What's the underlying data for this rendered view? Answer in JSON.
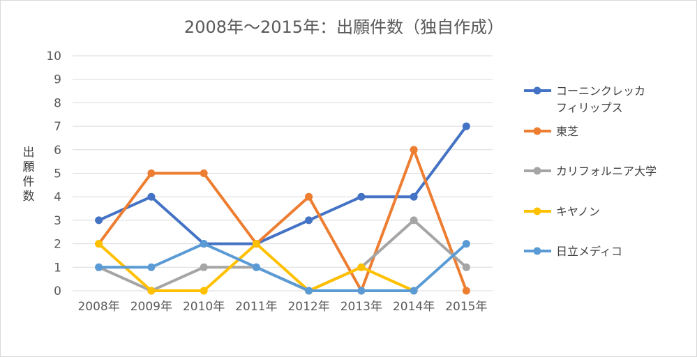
{
  "chart_data": {
    "type": "line",
    "title": "2008年〜2015年：出願件数（独自作成）",
    "ylabel": "出願件数",
    "xlabel": "",
    "categories": [
      "2008年",
      "2009年",
      "2010年",
      "2011年",
      "2012年",
      "2013年",
      "2014年",
      "2015年"
    ],
    "yticks": [
      "0",
      "1",
      "2",
      "3",
      "4",
      "5",
      "6",
      "7",
      "8",
      "9",
      "10"
    ],
    "ylim": [
      0,
      10
    ],
    "grid": true,
    "legend_position": "right",
    "series": [
      {
        "name": "コーニンクレッカフィリップス",
        "legend_lines": [
          "コーニンクレッカ",
          "フィリップス"
        ],
        "color": "#4472C4",
        "values": [
          3,
          4,
          2,
          2,
          3,
          4,
          4,
          7
        ]
      },
      {
        "name": "東芝",
        "legend_lines": [
          "東芝"
        ],
        "color": "#ED7D31",
        "values": [
          2,
          5,
          5,
          2,
          4,
          0,
          6,
          0
        ]
      },
      {
        "name": "カリフォルニア大学",
        "legend_lines": [
          "カリフォルニア大学"
        ],
        "color": "#A5A5A5",
        "values": [
          1,
          0,
          1,
          1,
          0,
          1,
          3,
          1
        ]
      },
      {
        "name": "キヤノン",
        "legend_lines": [
          "キヤノン"
        ],
        "color": "#FFC000",
        "values": [
          2,
          0,
          0,
          2,
          0,
          1,
          0,
          null
        ]
      },
      {
        "name": "日立メディコ",
        "legend_lines": [
          "日立メディコ"
        ],
        "color": "#5B9BD5",
        "values": [
          1,
          1,
          2,
          1,
          0,
          0,
          0,
          2
        ]
      }
    ]
  }
}
